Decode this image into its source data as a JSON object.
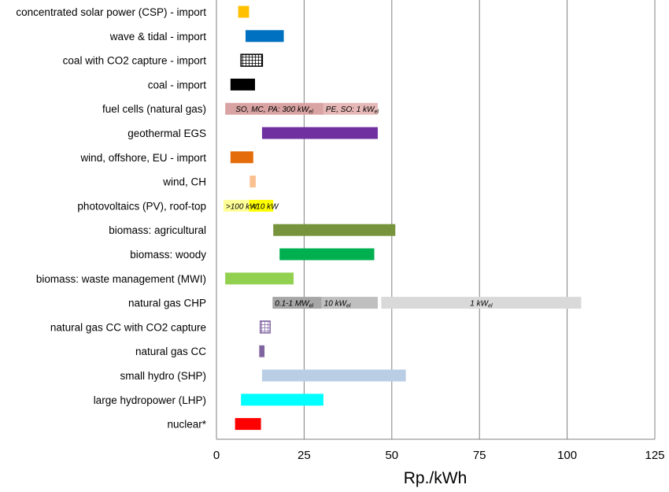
{
  "chart_data": {
    "type": "bar",
    "orientation": "horizontal-range",
    "xlabel": "Rp./kWh",
    "xlim": [
      0,
      125
    ],
    "xticks": [
      0,
      25,
      50,
      75,
      100,
      125
    ],
    "grid": "vertical",
    "categories": [
      "concentrated solar power (CSP) - import",
      "wave & tidal - import",
      "coal with CO2 capture - import",
      "coal - import",
      "fuel cells (natural gas)",
      "geothermal EGS",
      "wind, offshore, EU - import",
      "wind, CH",
      "photovoltaics (PV), roof-top",
      "biomass: agricultural",
      "biomass: woody",
      "biomass: waste management (MWI)",
      "natural gas CHP",
      "natural gas CC with CO2 capture",
      "natural gas CC",
      "small hydro (SHP)",
      "large hydropower (LHP)",
      "nuclear*"
    ],
    "ranges": [
      {
        "category": "concentrated solar power (CSP) - import",
        "segments": [
          {
            "start": 6.2,
            "end": 9.3,
            "color": "#FFC000"
          }
        ]
      },
      {
        "category": "wave & tidal - import",
        "segments": [
          {
            "start": 8.3,
            "end": 19.2,
            "color": "#0070C0"
          }
        ]
      },
      {
        "category": "coal with CO2 capture - import",
        "segments": [
          {
            "start": 7.0,
            "end": 13.1,
            "color": "#000000",
            "pattern": "grid"
          }
        ]
      },
      {
        "category": "coal - import",
        "segments": [
          {
            "start": 4.0,
            "end": 11.0,
            "color": "#000000"
          }
        ]
      },
      {
        "category": "fuel cells (natural gas)",
        "segments": [
          {
            "start": 2.5,
            "end": 30.5,
            "color": "#D9A3A3",
            "label": "SO, MC, PA: 300 kW",
            "label_sub": "el"
          },
          {
            "start": 30.5,
            "end": 46.0,
            "color": "#E6B8B7",
            "label": "PE, SO: 1 kW",
            "label_sub": "el"
          }
        ]
      },
      {
        "category": "geothermal EGS",
        "segments": [
          {
            "start": 13.0,
            "end": 46.0,
            "color": "#7030A0"
          }
        ]
      },
      {
        "category": "wind, offshore, EU - import",
        "segments": [
          {
            "start": 4.0,
            "end": 10.5,
            "color": "#E46C0A"
          }
        ]
      },
      {
        "category": "wind, CH",
        "segments": [
          {
            "start": 9.5,
            "end": 11.2,
            "color": "#FAC090"
          }
        ]
      },
      {
        "category": "photovoltaics (PV), roof-top",
        "segments": [
          {
            "start": 2.0,
            "end": 9.3,
            "color": "#FFFF99",
            "label": ">100 kW"
          },
          {
            "start": 9.3,
            "end": 16.2,
            "color": "#FFFF00",
            "label": "<10 kW"
          }
        ]
      },
      {
        "category": "biomass: agricultural",
        "segments": [
          {
            "start": 16.2,
            "end": 51.0,
            "color": "#77933C"
          }
        ]
      },
      {
        "category": "biomass: woody",
        "segments": [
          {
            "start": 18.0,
            "end": 45.0,
            "color": "#00B050"
          }
        ]
      },
      {
        "category": "biomass: waste management (MWI)",
        "segments": [
          {
            "start": 2.5,
            "end": 22.0,
            "color": "#92D050"
          }
        ]
      },
      {
        "category": "natural gas CHP",
        "segments": [
          {
            "start": 16.0,
            "end": 30.0,
            "color": "#A6A6A6",
            "label": "0.1-1 MW",
            "label_sub": "el"
          },
          {
            "start": 30.0,
            "end": 46.0,
            "color": "#BFBFBF",
            "label": "10 kW",
            "label_sub": "el"
          },
          {
            "start": 47.0,
            "end": 104.0,
            "color": "#D9D9D9",
            "label": "1 kW",
            "label_sub": "el"
          }
        ]
      },
      {
        "category": "natural gas CC with CO2 capture",
        "segments": [
          {
            "start": 12.5,
            "end": 15.3,
            "color": "#8064A2",
            "pattern": "grid"
          }
        ]
      },
      {
        "category": "natural gas CC",
        "segments": [
          {
            "start": 12.2,
            "end": 13.7,
            "color": "#8064A2"
          }
        ]
      },
      {
        "category": "small hydro (SHP)",
        "segments": [
          {
            "start": 13.0,
            "end": 54.0,
            "color": "#B9CDE5"
          }
        ]
      },
      {
        "category": "large hydropower (LHP)",
        "segments": [
          {
            "start": 7.0,
            "end": 30.5,
            "color": "#00FFFF"
          }
        ]
      },
      {
        "category": "nuclear*",
        "segments": [
          {
            "start": 5.3,
            "end": 12.7,
            "color": "#FF0000"
          }
        ]
      }
    ]
  }
}
